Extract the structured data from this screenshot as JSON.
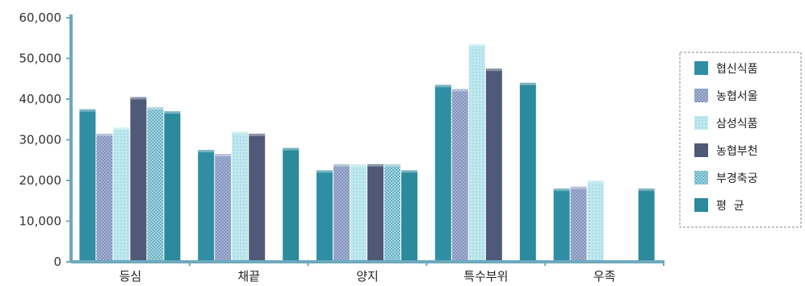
{
  "chart_data": {
    "type": "bar",
    "categories": [
      "등심",
      "채끝",
      "양지",
      "특수부위",
      "우족"
    ],
    "series": [
      {
        "name": "협신식품",
        "values": [
          37500,
          27500,
          22500,
          43500,
          18000
        ]
      },
      {
        "name": "농협서울",
        "values": [
          31500,
          26500,
          24000,
          42500,
          18500
        ]
      },
      {
        "name": "삼성식품",
        "values": [
          33000,
          32000,
          24000,
          53500,
          20000
        ]
      },
      {
        "name": "농협부천",
        "values": [
          40500,
          31500,
          24000,
          47500,
          0
        ]
      },
      {
        "name": "부경축궁",
        "values": [
          38000,
          0,
          24000,
          0,
          0
        ]
      },
      {
        "name": "평  균",
        "values": [
          37000,
          28000,
          22500,
          44000,
          18000
        ]
      }
    ],
    "y_tick_labels": [
      "0",
      "10,000",
      "20,000",
      "30,000",
      "40,000",
      "50,000",
      "60,000"
    ],
    "ylim": [
      0,
      60000
    ],
    "title": "",
    "xlabel": "",
    "ylabel": "",
    "grid": false,
    "legend_position": "right",
    "colors": [
      "#2f8ea4",
      "#a7b6d6",
      "#b4e4ec",
      "#505a78",
      "#8bc8d8",
      "#2b8a9b"
    ],
    "patterns": [
      "solid",
      "crosshatch",
      "light-dots",
      "solid-dark",
      "checker",
      "solid"
    ]
  }
}
